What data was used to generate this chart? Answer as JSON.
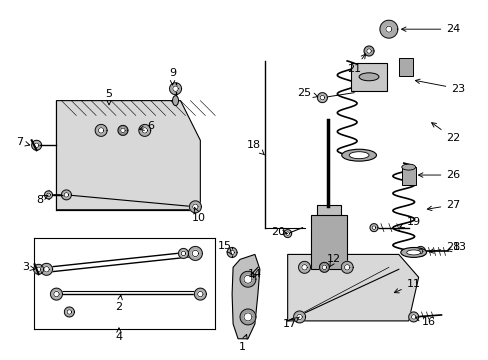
{
  "bg_color": "#ffffff",
  "line_color": "#000000",
  "part_fill": "#d0d0d0",
  "fig_width": 4.89,
  "fig_height": 3.6,
  "dpi": 100
}
